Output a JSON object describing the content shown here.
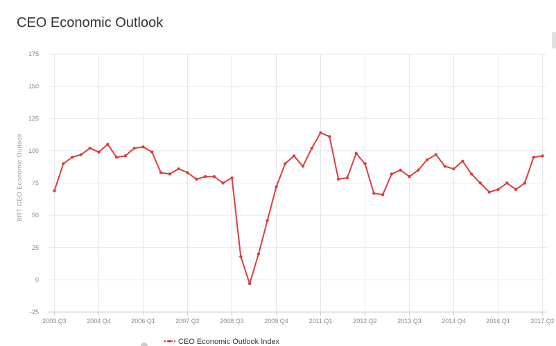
{
  "page_title": "CEO Economic Outlook",
  "colors": {
    "series": "#e03c3c",
    "grid": "#e6e6e6",
    "axis": "#cccccc"
  },
  "chart_data": {
    "type": "line",
    "title": "CEO Economic Outlook",
    "xlabel": "",
    "ylabel": "BRT CEO Economic Outlook",
    "ylim": [
      -25,
      175
    ],
    "yticks": [
      -25,
      0,
      25,
      50,
      75,
      100,
      125,
      150,
      175
    ],
    "x_tick_labels": [
      "2003 Q3",
      "2004 Q4",
      "2006 Q1",
      "2007 Q2",
      "2008 Q3",
      "2009 Q4",
      "2011 Q1",
      "2012 Q2",
      "2013 Q3",
      "2014 Q4",
      "2016 Q1",
      "2017 Q2"
    ],
    "x_tick_indices": [
      0,
      5,
      10,
      15,
      20,
      25,
      30,
      35,
      40,
      45,
      50,
      55
    ],
    "grid": true,
    "legend": "bottom-left",
    "series": [
      {
        "name": "CEO Economic Outlook Index",
        "categories": [
          "2003 Q3",
          "2003 Q4",
          "2004 Q1",
          "2004 Q2",
          "2004 Q3",
          "2004 Q4",
          "2005 Q1",
          "2005 Q2",
          "2005 Q3",
          "2005 Q4",
          "2006 Q1",
          "2006 Q2",
          "2006 Q3",
          "2006 Q4",
          "2007 Q1",
          "2007 Q2",
          "2007 Q3",
          "2007 Q4",
          "2008 Q1",
          "2008 Q2",
          "2008 Q3",
          "2008 Q4",
          "2009 Q1",
          "2009 Q2",
          "2009 Q3",
          "2009 Q4",
          "2010 Q1",
          "2010 Q2",
          "2010 Q3",
          "2010 Q4",
          "2011 Q1",
          "2011 Q2",
          "2011 Q3",
          "2011 Q4",
          "2012 Q1",
          "2012 Q2",
          "2012 Q3",
          "2012 Q4",
          "2013 Q1",
          "2013 Q2",
          "2013 Q3",
          "2013 Q4",
          "2014 Q1",
          "2014 Q2",
          "2014 Q3",
          "2014 Q4",
          "2015 Q1",
          "2015 Q2",
          "2015 Q3",
          "2015 Q4",
          "2016 Q1",
          "2016 Q2",
          "2016 Q3",
          "2016 Q4",
          "2017 Q1",
          "2017 Q2"
        ],
        "values": [
          69,
          90,
          95,
          97,
          102,
          99,
          105,
          95,
          96,
          102,
          103,
          99,
          83,
          82,
          86,
          83,
          78,
          80,
          80,
          75,
          79,
          18,
          -3,
          20,
          46,
          72,
          90,
          96,
          88,
          102,
          114,
          111,
          78,
          79,
          98,
          90,
          67,
          66,
          82,
          85,
          80,
          85,
          93,
          97,
          88,
          86,
          92,
          82,
          75,
          68,
          70,
          75,
          70,
          75,
          95,
          96
        ]
      }
    ]
  }
}
